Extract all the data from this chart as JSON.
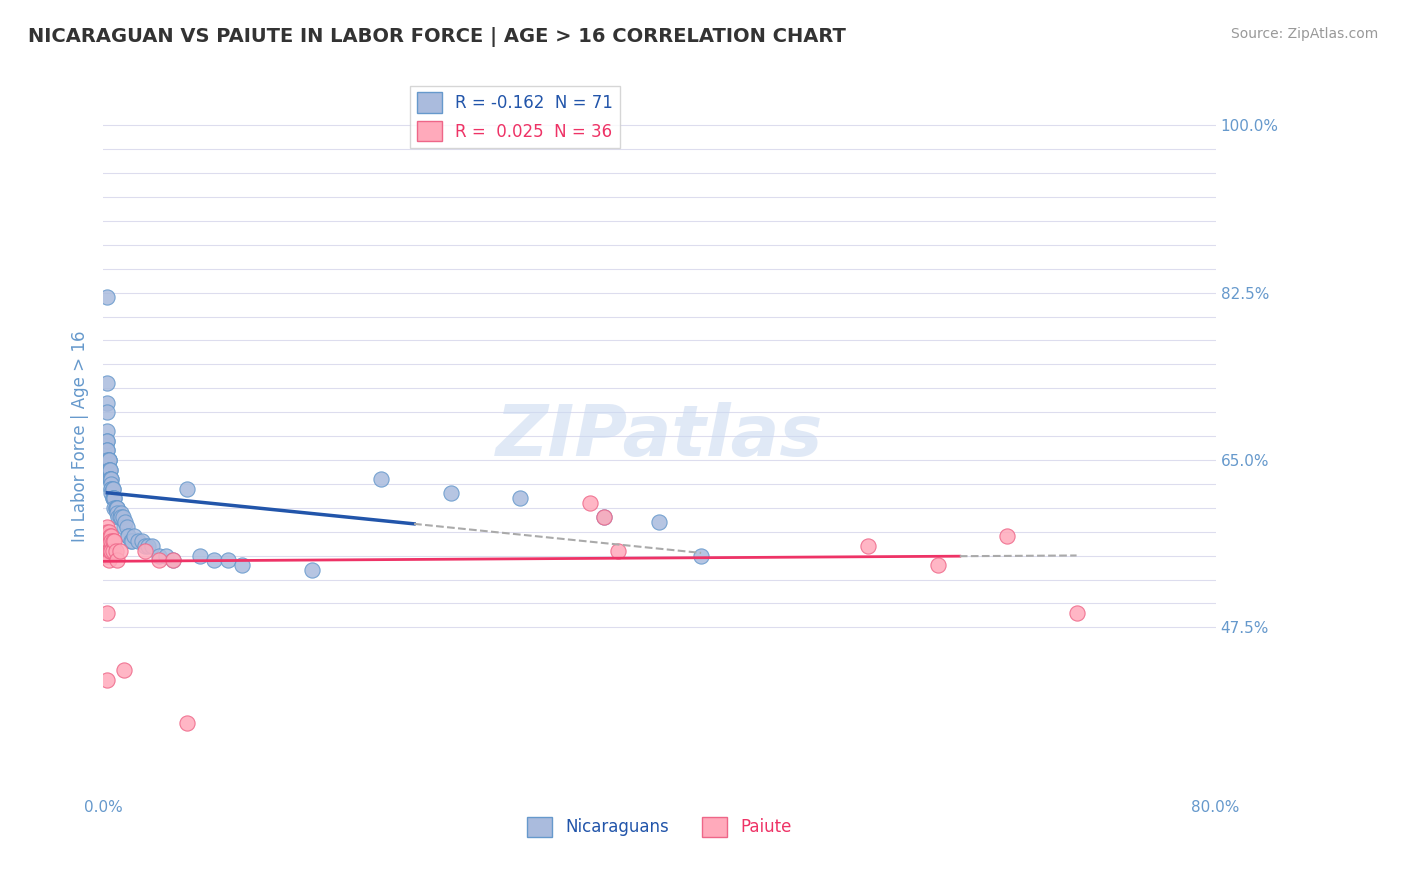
{
  "title": "NICARAGUAN VS PAIUTE IN LABOR FORCE | AGE > 16 CORRELATION CHART",
  "source_text": "Source: ZipAtlas.com",
  "ylabel": "In Labor Force | Age > 16",
  "xlim": [
    0.0,
    0.8
  ],
  "ylim": [
    0.3,
    1.05
  ],
  "ytick_labels_shown": {
    "1.0": "100.0%",
    "0.825": "82.5%",
    "0.65": "65.0%",
    "0.475": "47.5%"
  },
  "blue_color": "#6699cc",
  "blue_fill": "#aabbdd",
  "pink_color": "#ee6688",
  "pink_fill": "#ffaabb",
  "trend_blue_color": "#2255aa",
  "trend_pink_color": "#ee3366",
  "R_blue": -0.162,
  "N_blue": 71,
  "R_pink": 0.025,
  "N_pink": 36,
  "watermark": "ZIPatlas",
  "legend_labels": [
    "Nicaraguans",
    "Paiute"
  ],
  "blue_scatter_x": [
    0.003,
    0.003,
    0.003,
    0.003,
    0.003,
    0.003,
    0.003,
    0.003,
    0.003,
    0.003,
    0.004,
    0.004,
    0.004,
    0.004,
    0.004,
    0.005,
    0.005,
    0.005,
    0.005,
    0.005,
    0.006,
    0.006,
    0.006,
    0.006,
    0.006,
    0.006,
    0.007,
    0.007,
    0.007,
    0.007,
    0.008,
    0.008,
    0.008,
    0.009,
    0.009,
    0.01,
    0.01,
    0.01,
    0.011,
    0.012,
    0.013,
    0.013,
    0.014,
    0.015,
    0.016,
    0.017,
    0.018,
    0.018,
    0.02,
    0.021,
    0.022,
    0.025,
    0.028,
    0.03,
    0.032,
    0.035,
    0.04,
    0.045,
    0.05,
    0.06,
    0.07,
    0.08,
    0.09,
    0.1,
    0.15,
    0.2,
    0.25,
    0.3,
    0.36,
    0.4,
    0.43
  ],
  "blue_scatter_y": [
    0.82,
    0.73,
    0.71,
    0.7,
    0.68,
    0.67,
    0.67,
    0.66,
    0.66,
    0.65,
    0.65,
    0.65,
    0.65,
    0.64,
    0.64,
    0.64,
    0.64,
    0.63,
    0.63,
    0.63,
    0.63,
    0.63,
    0.625,
    0.62,
    0.62,
    0.615,
    0.62,
    0.62,
    0.61,
    0.61,
    0.61,
    0.61,
    0.6,
    0.6,
    0.6,
    0.6,
    0.6,
    0.595,
    0.59,
    0.59,
    0.595,
    0.59,
    0.59,
    0.58,
    0.585,
    0.58,
    0.57,
    0.57,
    0.565,
    0.565,
    0.57,
    0.565,
    0.565,
    0.56,
    0.56,
    0.56,
    0.55,
    0.55,
    0.545,
    0.62,
    0.55,
    0.545,
    0.545,
    0.54,
    0.535,
    0.63,
    0.615,
    0.61,
    0.59,
    0.585,
    0.55
  ],
  "pink_scatter_x": [
    0.003,
    0.003,
    0.003,
    0.003,
    0.003,
    0.003,
    0.003,
    0.003,
    0.003,
    0.004,
    0.004,
    0.004,
    0.004,
    0.005,
    0.005,
    0.006,
    0.006,
    0.006,
    0.007,
    0.007,
    0.008,
    0.009,
    0.01,
    0.012,
    0.015,
    0.03,
    0.04,
    0.05,
    0.06,
    0.35,
    0.36,
    0.37,
    0.55,
    0.6,
    0.65,
    0.7
  ],
  "pink_scatter_y": [
    0.58,
    0.575,
    0.57,
    0.565,
    0.56,
    0.555,
    0.55,
    0.49,
    0.42,
    0.575,
    0.565,
    0.555,
    0.545,
    0.57,
    0.555,
    0.57,
    0.565,
    0.555,
    0.565,
    0.555,
    0.565,
    0.555,
    0.545,
    0.555,
    0.43,
    0.555,
    0.545,
    0.545,
    0.375,
    0.605,
    0.59,
    0.555,
    0.56,
    0.54,
    0.57,
    0.49
  ],
  "grid_color": "#ddddee",
  "background_color": "#ffffff",
  "title_color": "#333333",
  "axis_label_color": "#6699cc",
  "tick_color": "#6699cc"
}
